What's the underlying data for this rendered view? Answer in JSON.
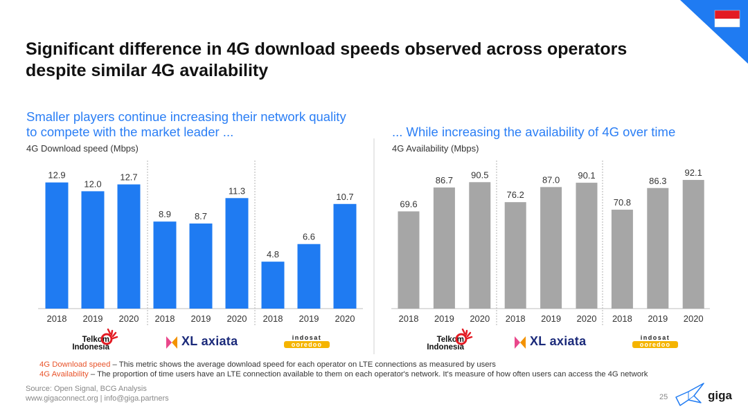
{
  "title": "Significant difference in 4G download speeds observed across operators despite similar 4G availability",
  "left_panel": {
    "subtitle": "Smaller players continue increasing their network quality to compete with the market leader ...",
    "unit_label": "4G Download speed (Mbps)"
  },
  "right_panel": {
    "subtitle": "... While increasing the availability of 4G over time",
    "unit_label": "4G Availability (Mbps)"
  },
  "operators": {
    "telkom": [
      "Telkom",
      "Indonesia"
    ],
    "xl": "XL axiata",
    "indosat": [
      "indosat",
      "ooredoo"
    ]
  },
  "chart_data": [
    {
      "type": "bar",
      "title": "",
      "ylabel": "4G Download speed (Mbps)",
      "color": "#1f7bf2",
      "groups": [
        "Telkom Indonesia",
        "XL axiata",
        "indosat ooredoo"
      ],
      "categories": [
        "2018",
        "2019",
        "2020",
        "2018",
        "2019",
        "2020",
        "2018",
        "2019",
        "2020"
      ],
      "values": [
        12.9,
        12.0,
        12.7,
        8.9,
        8.7,
        11.3,
        4.8,
        6.6,
        10.7
      ],
      "labels": [
        "12.9",
        "12.0",
        "12.7",
        "8.9",
        "8.7",
        "11.3",
        "4.8",
        "6.6",
        "10.7"
      ],
      "ylim": [
        0,
        15
      ]
    },
    {
      "type": "bar",
      "title": "",
      "ylabel": "4G Availability (Mbps)",
      "color": "#a6a6a6",
      "groups": [
        "Telkom Indonesia",
        "XL axiata",
        "indosat ooredoo"
      ],
      "categories": [
        "2018",
        "2019",
        "2020",
        "2018",
        "2019",
        "2020",
        "2018",
        "2019",
        "2020"
      ],
      "values": [
        69.6,
        86.7,
        90.5,
        76.2,
        87.0,
        90.1,
        70.8,
        86.3,
        92.1
      ],
      "labels": [
        "69.6",
        "86.7",
        "90.5",
        "76.2",
        "87.0",
        "90.1",
        "70.8",
        "86.3",
        "92.1"
      ],
      "ylim": [
        0,
        105
      ]
    }
  ],
  "notes": {
    "download_term": "4G Download speed",
    "download_text": " – This metric shows the average download speed for each operator on LTE connections as measured by users",
    "availability_term": "4G Availability",
    "availability_text": " – The proportion of time users have an LTE connection available to them on each operator's network. It's measure of how often users can access the 4G network"
  },
  "source": "Source: Open Signal, BCG Analysis",
  "contact": "www.gigaconnect.org  |  info@giga.partners",
  "page_number": "25",
  "brand": "giga",
  "colors": {
    "accent_blue": "#2a7ef5",
    "bar_blue": "#1f7bf2",
    "bar_gray": "#a6a6a6",
    "note_orange": "#e8532a",
    "flag_red": "#e31b23"
  }
}
